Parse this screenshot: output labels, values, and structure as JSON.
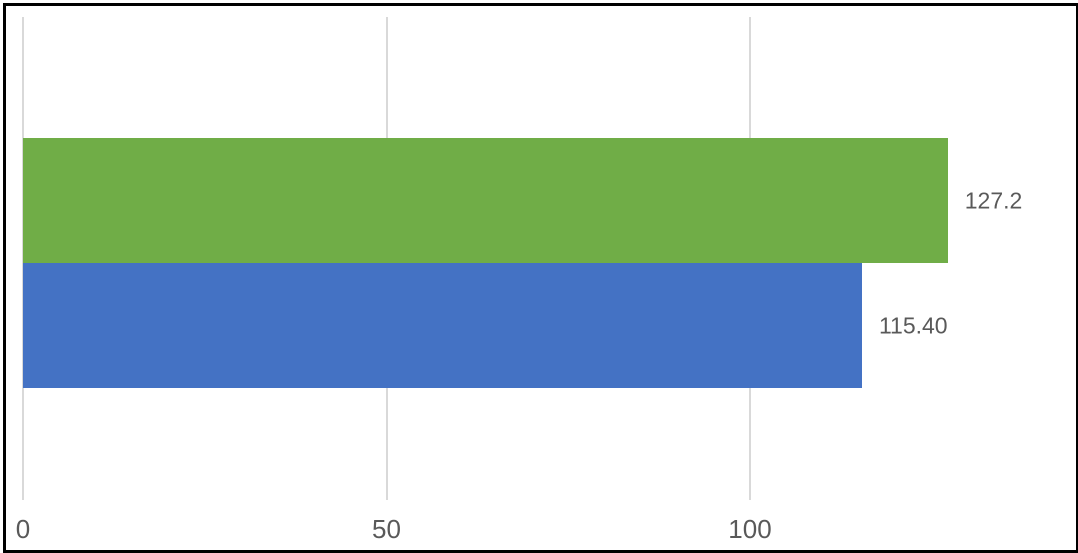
{
  "chart_data": {
    "type": "bar",
    "orientation": "horizontal",
    "title": "",
    "xlabel": "",
    "ylabel": "",
    "xticks": [
      0,
      50,
      100
    ],
    "xtick_labels": [
      "0",
      "50",
      "100"
    ],
    "xlim": [
      0,
      145
    ],
    "grid": true,
    "legend_position": "none",
    "series": [
      {
        "value": 115.4,
        "label": "115.40",
        "color": "#4472c4"
      },
      {
        "value": 127.2,
        "label": "127.2",
        "color": "#70ad47"
      }
    ],
    "styles": {
      "gridline_color": "#d9d9d9",
      "tick_label_color": "#595959",
      "data_label_color": "#595959",
      "frame_border_color": "#000000",
      "background_color": "#ffffff"
    }
  }
}
